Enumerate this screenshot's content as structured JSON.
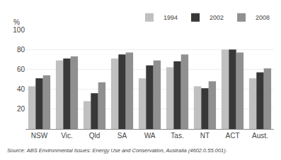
{
  "chart_data": {
    "type": "bar",
    "categories": [
      "NSW",
      "Vic.",
      "Qld",
      "SA",
      "WA",
      "Tas.",
      "NT",
      "ACT",
      "Aust."
    ],
    "series": [
      {
        "name": "1994",
        "color": "#c0c0c0",
        "values": [
          43,
          69,
          28,
          71,
          51,
          62,
          43,
          80,
          51
        ]
      },
      {
        "name": "2002",
        "color": "#383838",
        "values": [
          51,
          71,
          36,
          75,
          64,
          68,
          41,
          80,
          57
        ]
      },
      {
        "name": "2008",
        "color": "#909090",
        "values": [
          54,
          73,
          47,
          77,
          69,
          75,
          48,
          77,
          61
        ]
      }
    ],
    "ylabel": "%",
    "ylim": [
      0,
      100
    ],
    "yticks": [
      20,
      40,
      60,
      80,
      100
    ],
    "grid": true,
    "legend": "upper right",
    "source": "Source: ABS Environmental Issues: Energy Use and Conservation, Australia (4602.0.55.001)."
  }
}
